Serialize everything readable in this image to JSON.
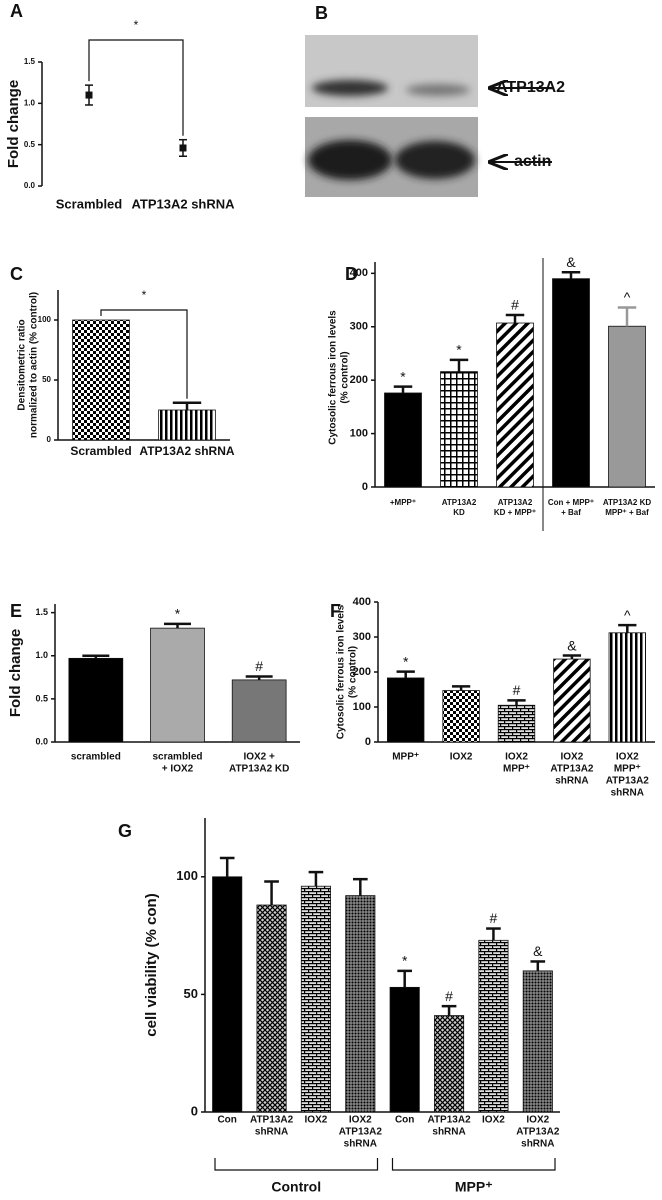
{
  "chart_data": [
    {
      "type": "errorbar",
      "panel_label": "A",
      "ylabel": "Fold change",
      "categories": [
        "Scrambled",
        "ATP13A2 shRNA"
      ],
      "values": [
        1.1,
        0.46
      ],
      "errors": [
        0.12,
        0.1
      ],
      "color": "#111111",
      "significance": "*",
      "ylim": [
        0,
        1.5
      ],
      "yticks": [
        {
          "value": 0,
          "label": "0.0"
        },
        {
          "value": 0.5,
          "label": "0.5"
        },
        {
          "value": 1,
          "label": "1.0"
        },
        {
          "value": 1.5,
          "label": "1.5"
        }
      ]
    },
    {
      "type": "bar",
      "panel_label": "C",
      "ylabel": [
        "Densitometric ratio",
        "normalized to actin (% control)"
      ],
      "categories": [
        [
          "Scrambled"
        ],
        [
          "ATP13A2 shRNA"
        ]
      ],
      "values": [
        100,
        25
      ],
      "errors": [
        null,
        6
      ],
      "patterns": [
        "checker",
        "vstripe"
      ],
      "colors": [
        "#444444",
        "#555555"
      ],
      "significance": "*",
      "ylim": [
        0,
        125
      ],
      "yticks": [
        0,
        50,
        100
      ]
    },
    {
      "type": "bar",
      "panel_label": "D",
      "ylabel": [
        "Cytosolic ferrous iron levels",
        "(% control)"
      ],
      "categories": [
        [
          "+MPP⁺"
        ],
        [
          "ATP13A2",
          "KD"
        ],
        [
          "ATP13A2",
          "KD + MPP⁺"
        ],
        [
          "Con + MPP⁺",
          "+ Baf"
        ],
        [
          "ATP13A2 KD",
          "MPP⁺ + Baf"
        ]
      ],
      "values": [
        176,
        216,
        307,
        390,
        301
      ],
      "errors": [
        12,
        22,
        15,
        12,
        35
      ],
      "annotations": [
        "*",
        "*",
        "#",
        "&",
        "^"
      ],
      "patterns": [
        "solid",
        "grid",
        "diag",
        "solid",
        "solid"
      ],
      "colors": [
        "#000000",
        "#000000",
        "#000000",
        "#000000",
        "#999999"
      ],
      "ylim": [
        0,
        410
      ],
      "yticks": [
        0,
        100,
        200,
        300,
        400
      ]
    },
    {
      "type": "bar",
      "panel_label": "E",
      "ylabel": "Fold change",
      "categories": [
        [
          "scrambled"
        ],
        [
          "scrambled",
          "+ IOX2"
        ],
        [
          "IOX2 +",
          "ATP13A2 KD"
        ]
      ],
      "values": [
        0.97,
        1.32,
        0.72
      ],
      "errors": [
        0.03,
        0.05,
        0.04
      ],
      "annotations": [
        null,
        "*",
        "#"
      ],
      "patterns": [
        "solid",
        "solid",
        "solid"
      ],
      "colors": [
        "#000000",
        "#aaaaaa",
        "#777777"
      ],
      "ylim": [
        0,
        1.6
      ],
      "yticks": [
        {
          "value": 0,
          "label": "0.0"
        },
        {
          "value": 0.5,
          "label": "0.5"
        },
        {
          "value": 1,
          "label": "1.0"
        },
        {
          "value": 1.5,
          "label": "1.5"
        }
      ]
    },
    {
      "type": "bar",
      "panel_label": "F",
      "ylabel": [
        "Cytosolic ferrous iron levels",
        "(% control)"
      ],
      "categories": [
        [
          "MPP⁺"
        ],
        [
          "IOX2"
        ],
        [
          "IOX2",
          "MPP⁺"
        ],
        [
          "IOX2",
          "ATP13A2",
          "shRNA"
        ],
        [
          "IOX2",
          "MPP⁺",
          "ATP13A2",
          "shRNA"
        ]
      ],
      "values": [
        183,
        147,
        105,
        237,
        312
      ],
      "errors": [
        18,
        12,
        14,
        10,
        22
      ],
      "annotations": [
        "*",
        null,
        "#",
        "&",
        "^"
      ],
      "patterns": [
        "solid",
        "checker",
        "brick",
        "diag",
        "vstripe"
      ],
      "colors": [
        "#000000",
        "#555555",
        "#555555",
        "#000000",
        "#666666"
      ],
      "ylim": [
        0,
        400
      ],
      "yticks": [
        0,
        100,
        200,
        300,
        400
      ]
    },
    {
      "type": "bar",
      "panel_label": "G",
      "ylabel": "cell viability (% con)",
      "categories": [
        [
          "Con"
        ],
        [
          "ATP13A2",
          "shRNA"
        ],
        [
          "IOX2"
        ],
        [
          "IOX2",
          "ATP13A2",
          "shRNA"
        ],
        [
          "Con"
        ],
        [
          "ATP13A2",
          "shRNA"
        ],
        [
          "IOX2"
        ],
        [
          "IOX2",
          "ATP13A2",
          "shRNA"
        ]
      ],
      "values": [
        100,
        88,
        96,
        92,
        53,
        41,
        73,
        60
      ],
      "errors": [
        8,
        10,
        6,
        7,
        7,
        4,
        5,
        4
      ],
      "annotations": [
        null,
        null,
        null,
        null,
        "*",
        "#",
        "#",
        "&"
      ],
      "patterns": [
        "solid",
        "cross",
        "brick",
        "dots",
        "solid",
        "cross",
        "brick",
        "dots"
      ],
      "colors": [
        "#000000",
        "#333333",
        "#333333",
        "#222222",
        "#000000",
        "#333333",
        "#333333",
        "#222222"
      ],
      "groups": [
        "Control",
        "MPP⁺"
      ],
      "ylim": [
        0,
        125
      ],
      "yticks": [
        0,
        50,
        100
      ]
    }
  ],
  "blot": {
    "panel_label": "B",
    "bands": [
      "ATP13A2",
      "actin"
    ]
  }
}
